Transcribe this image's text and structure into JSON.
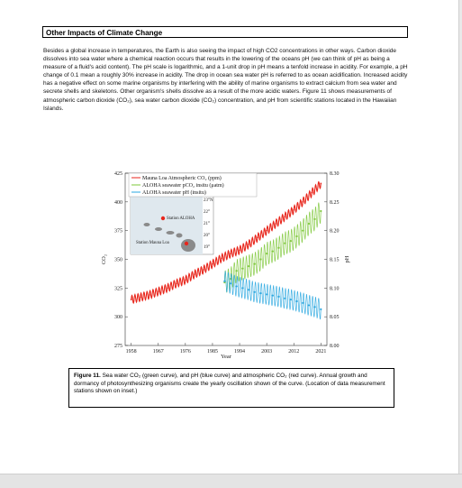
{
  "header": {
    "title": "Other Impacts of Climate Change"
  },
  "body_text": "Besides a global increase in temperatures, the Earth is also seeing the impact of high CO2 concentrations in other ways.  Carbon dioxide dissolves into sea water where a chemical reaction occurs that results in the lowering of the oceans pH (we can think of pH as being a measure of a fluid's acid content).  The pH scale is logarithmic, and a 1-unit drop in pH means a tenfold increase in acidity.  For example, a pH change of 0.1  mean a roughly 30% increase in acidity.  The drop in ocean sea water pH is referred to as ocean acidification.  Increased acidity has a negative effect on some marine organisms by interfering with the ability of marine organisms to extract calcium from sea water and secrete shells and skeletons.  Other organism's shells dissolve as a result of the more acidic waters.  Figure 11 shows measurements of atmospheric carbon dioxide (CO₂), sea water carbon dioxide (CO₂) concentration, and pH from scientific stations located in the Hawaiian Islands.",
  "figure": {
    "inset": {
      "lon_labels": [
        "160°W",
        "158°W",
        "156°W"
      ],
      "lat_labels": [
        "23°N",
        "22°",
        "21°",
        "20°",
        "19°"
      ],
      "station_aloha": "Station ALOHA",
      "station_mauna_loa": "Station Mauna Loa"
    }
  },
  "chart_data": {
    "type": "line",
    "xlabel": "Year",
    "ylabel": "CO₂",
    "y2label": "pH",
    "x_ticks": [
      "1958",
      "1967",
      "1976",
      "1985",
      "1994",
      "2003",
      "2012",
      "2021"
    ],
    "y_ticks": [
      "275",
      "300",
      "325",
      "350",
      "375",
      "400",
      "425"
    ],
    "y2_ticks": [
      "8.00",
      "8.05",
      "8.10",
      "8.15",
      "8.20",
      "8.25",
      "8.30"
    ],
    "xlim": [
      1956,
      2023
    ],
    "ylim": [
      275,
      425
    ],
    "y2lim": [
      8.0,
      8.3
    ],
    "legend_position": "top-left",
    "series": [
      {
        "name": "Mauna Loa Atmospheric CO₂ (ppm)",
        "color": "#e8261c",
        "axis": "left",
        "x": [
          1958,
          1961,
          1964,
          1967,
          1970,
          1973,
          1976,
          1979,
          1982,
          1985,
          1988,
          1991,
          1994,
          1997,
          2000,
          2003,
          2006,
          2009,
          2012,
          2015,
          2018,
          2021
        ],
        "y": [
          315,
          317,
          319,
          322,
          325,
          329,
          332,
          337,
          341,
          346,
          351,
          355,
          358,
          363,
          369,
          375,
          381,
          387,
          393,
          400,
          408,
          416
        ]
      },
      {
        "name": "ALOHA seawater pCO₂ insitu (μatm)",
        "color": "#7ec83a",
        "axis": "left",
        "x": [
          1989,
          1991,
          1993,
          1995,
          1997,
          1999,
          2001,
          2003,
          2005,
          2007,
          2009,
          2011,
          2013,
          2015,
          2017,
          2019,
          2021
        ],
        "y": [
          330,
          333,
          340,
          342,
          344,
          346,
          350,
          355,
          357,
          360,
          364,
          366,
          370,
          375,
          381,
          385,
          392
        ]
      },
      {
        "name": "ALOHA seawater pH (insitu)",
        "color": "#2aa7e0",
        "axis": "right",
        "x": [
          1989,
          1991,
          1993,
          1995,
          1997,
          1999,
          2001,
          2003,
          2005,
          2007,
          2009,
          2011,
          2013,
          2015,
          2017,
          2019,
          2021
        ],
        "y": [
          8.112,
          8.108,
          8.103,
          8.1,
          8.097,
          8.093,
          8.091,
          8.089,
          8.087,
          8.085,
          8.082,
          8.08,
          8.077,
          8.074,
          8.07,
          8.067,
          8.063
        ]
      }
    ]
  },
  "caption": {
    "label": "Figure 11.",
    "text": " Sea water CO₂ (green curve), and pH (blue curve) and atmospheric CO₂ (red curve).  Annual growth and dormancy of photosynthesizing organisms create the yearly oscillation shown of the curve.  (Location of  data measurement stations shown on inset.)"
  }
}
